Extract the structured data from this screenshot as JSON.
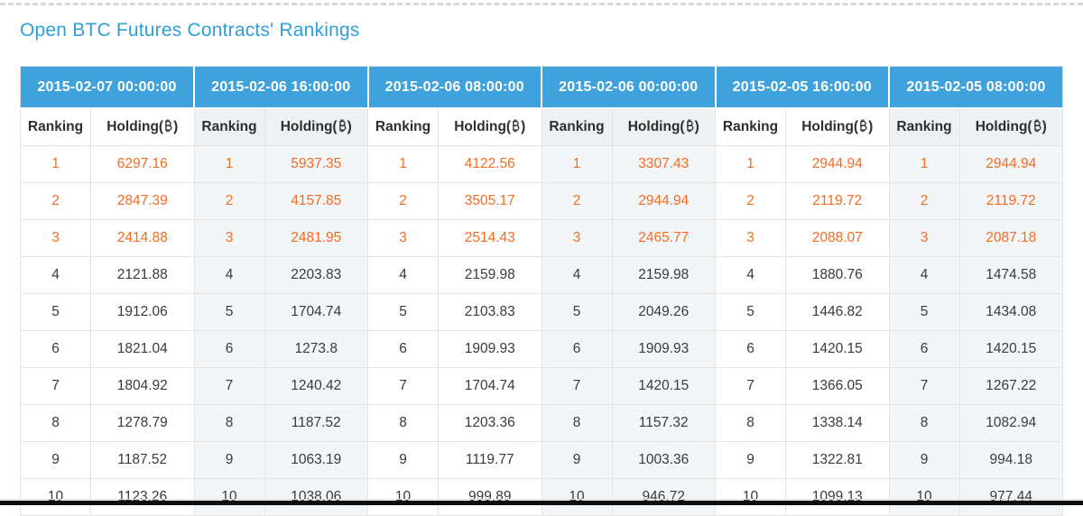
{
  "page": {
    "title": "Open BTC Futures Contracts' Rankings"
  },
  "table": {
    "sub_columns": {
      "ranking": "Ranking",
      "holding_prefix": "Holding(",
      "holding_suffix": ")",
      "currency_symbol": "₿"
    },
    "ranks": [
      "1",
      "2",
      "3",
      "4",
      "5",
      "6",
      "7",
      "8",
      "9",
      "10"
    ],
    "highlighted_rank_count": 3,
    "groups": [
      {
        "timestamp": "2015-02-07 00:00:00",
        "holdings": [
          "6297.16",
          "2847.39",
          "2414.88",
          "2121.88",
          "1912.06",
          "1821.04",
          "1804.92",
          "1278.79",
          "1187.52",
          "1123.26"
        ]
      },
      {
        "timestamp": "2015-02-06 16:00:00",
        "holdings": [
          "5937.35",
          "4157.85",
          "2481.95",
          "2203.83",
          "1704.74",
          "1273.8",
          "1240.42",
          "1187.52",
          "1063.19",
          "1038.06"
        ]
      },
      {
        "timestamp": "2015-02-06 08:00:00",
        "holdings": [
          "4122.56",
          "3505.17",
          "2514.43",
          "2159.98",
          "2103.83",
          "1909.93",
          "1704.74",
          "1203.36",
          "1119.77",
          "999.89"
        ]
      },
      {
        "timestamp": "2015-02-06 00:00:00",
        "holdings": [
          "3307.43",
          "2944.94",
          "2465.77",
          "2159.98",
          "2049.26",
          "1909.93",
          "1420.15",
          "1157.32",
          "1003.36",
          "946.72"
        ]
      },
      {
        "timestamp": "2015-02-05 16:00:00",
        "holdings": [
          "2944.94",
          "2119.72",
          "2088.07",
          "1880.76",
          "1446.82",
          "1420.15",
          "1366.05",
          "1338.14",
          "1322.81",
          "1099.13"
        ]
      },
      {
        "timestamp": "2015-02-05 08:00:00",
        "holdings": [
          "2944.94",
          "2119.72",
          "2087.18",
          "1474.58",
          "1434.08",
          "1420.15",
          "1267.22",
          "1082.94",
          "994.18",
          "977.44"
        ]
      }
    ]
  },
  "colors": {
    "header_blue": "#3fa2dc",
    "title_blue": "#2f9fd8",
    "rank_highlight_orange": "#f76b1e",
    "even_group_tint": "#f3f6f9",
    "even_group_header_tint": "#edf1f4"
  }
}
